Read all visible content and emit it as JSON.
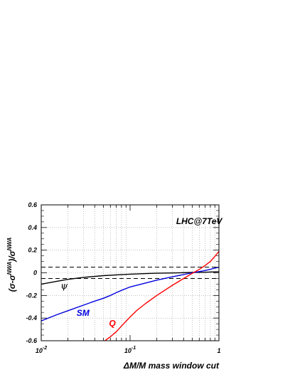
{
  "chart_data": {
    "type": "line",
    "title": "",
    "xlabel": "ΔM/M mass  window cut",
    "ylabel": "(σ-σ^NWA)/σ^NWA",
    "ylabel_parts": {
      "open": "(σ-σ",
      "sup1": "NWA",
      "mid": ")/σ",
      "sup2": "NWA"
    },
    "xscale": "log",
    "xlim": [
      0.01,
      1
    ],
    "ylim": [
      -0.6,
      0.6
    ],
    "grid": true,
    "x_ticks": [
      {
        "v": 0.01,
        "base": "10",
        "exp": "-2"
      },
      {
        "v": 0.1,
        "base": "10",
        "exp": "-1"
      },
      {
        "v": 1,
        "base": "1",
        "exp": ""
      }
    ],
    "y_ticks": [
      -0.6,
      -0.4,
      -0.2,
      0,
      0.2,
      0.4,
      0.6
    ],
    "y_tick_labels": [
      "-0.6",
      "-0.4",
      "-0.2",
      "0",
      "0.2",
      "0.4",
      "0.6"
    ],
    "reference_lines": [
      0.05,
      -0.05
    ],
    "annotations": [
      {
        "text": "LHC@7TeV",
        "x": 0.33,
        "y": 0.43,
        "color": "#000000"
      },
      {
        "text": "ψ",
        "x": 0.0165,
        "y": -0.14,
        "color": "#000000"
      },
      {
        "text": "SM",
        "x": 0.025,
        "y": -0.38,
        "color": "#0000dd"
      },
      {
        "text": "Q",
        "x": 0.058,
        "y": -0.47,
        "color": "#ff0000"
      }
    ],
    "series": [
      {
        "label": "ψ",
        "color": "#000000",
        "x": [
          0.01,
          0.015,
          0.02,
          0.03,
          0.05,
          0.07,
          0.1,
          0.15,
          0.2,
          0.3,
          0.5,
          0.7,
          1.0
        ],
        "y": [
          -0.1,
          -0.075,
          -0.058,
          -0.04,
          -0.025,
          -0.018,
          -0.012,
          -0.007,
          -0.004,
          -0.001,
          0.003,
          0.005,
          0.01
        ]
      },
      {
        "label": "SM",
        "color": "#0000dd",
        "x": [
          0.01,
          0.015,
          0.02,
          0.03,
          0.04,
          0.05,
          0.06,
          0.07,
          0.08,
          0.1,
          0.15,
          0.2,
          0.3,
          0.5,
          0.7,
          1.0
        ],
        "y": [
          -0.425,
          -0.37,
          -0.335,
          -0.285,
          -0.25,
          -0.225,
          -0.2,
          -0.175,
          -0.155,
          -0.125,
          -0.09,
          -0.065,
          -0.035,
          0.0,
          0.02,
          0.05
        ]
      },
      {
        "label": "Q",
        "color": "#ff0000",
        "x": [
          0.052,
          0.06,
          0.07,
          0.08,
          0.1,
          0.12,
          0.15,
          0.2,
          0.3,
          0.4,
          0.5,
          0.6,
          0.7,
          0.8,
          0.9,
          1.0
        ],
        "y": [
          -0.6,
          -0.565,
          -0.52,
          -0.47,
          -0.39,
          -0.33,
          -0.27,
          -0.2,
          -0.11,
          -0.05,
          -0.005,
          0.03,
          0.065,
          0.1,
          0.145,
          0.19
        ]
      }
    ]
  }
}
